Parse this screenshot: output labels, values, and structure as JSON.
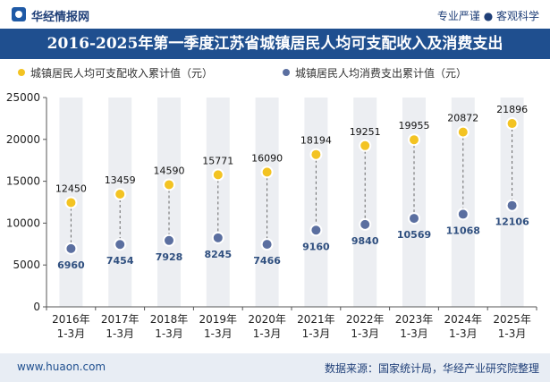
{
  "brand": {
    "name": "华经情报网",
    "tagline": "专业严谨 ● 客观科学"
  },
  "title": "2016-2025年第一季度江苏省城镇居民人均可支配收入及消费支出",
  "legend": {
    "income": "城镇居民人均可支配收入累计值（元）",
    "consumption": "城镇居民人均消费支出累计值（元）"
  },
  "footer": {
    "website": "www.huaon.com",
    "source": "数据来源：国家统计局，华经产业研究院整理"
  },
  "colors": {
    "title_bg": "#1f4f8f",
    "income": "#f3c322",
    "consumption": "#5b6fa0",
    "column_bg": "#eceef2"
  },
  "chart_data": {
    "type": "line",
    "categories": [
      [
        "2016年",
        "1-3月"
      ],
      [
        "2017年",
        "1-3月"
      ],
      [
        "2018年",
        "1-3月"
      ],
      [
        "2019年",
        "1-3月"
      ],
      [
        "2020年",
        "1-3月"
      ],
      [
        "2021年",
        "1-3月"
      ],
      [
        "2022年",
        "1-3月"
      ],
      [
        "2023年",
        "1-3月"
      ],
      [
        "2024年",
        "1-3月"
      ],
      [
        "2025年",
        "1-3月"
      ]
    ],
    "series": [
      {
        "name": "城镇居民人均可支配收入累计值（元）",
        "values": [
          12450,
          13459,
          14590,
          15771,
          16090,
          18194,
          19251,
          19955,
          20872,
          21896
        ]
      },
      {
        "name": "城镇居民人均消费支出累计值（元）",
        "values": [
          6960,
          7454,
          7928,
          8245,
          7466,
          9160,
          9840,
          10569,
          11068,
          12106
        ]
      }
    ],
    "ylim": [
      0,
      25000
    ],
    "yticks": [
      0,
      5000,
      10000,
      15000,
      20000,
      25000
    ],
    "title": "2016-2025年第一季度江苏省城镇居民人均可支配收入及消费支出",
    "xlabel": "",
    "ylabel": "",
    "grid": false,
    "legend_position": "top-left"
  }
}
